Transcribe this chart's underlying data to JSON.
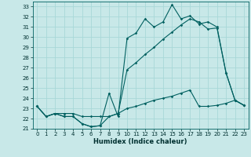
{
  "title": "",
  "xlabel": "Humidex (Indice chaleur)",
  "ylabel": "",
  "bg_color": "#c8e8e8",
  "grid_color": "#a8d8d8",
  "line_color": "#006060",
  "ylim": [
    21,
    33.5
  ],
  "xlim": [
    -0.5,
    23.5
  ],
  "yticks": [
    21,
    22,
    23,
    24,
    25,
    26,
    27,
    28,
    29,
    30,
    31,
    32,
    33
  ],
  "xticks": [
    0,
    1,
    2,
    3,
    4,
    5,
    6,
    7,
    8,
    9,
    10,
    11,
    12,
    13,
    14,
    15,
    16,
    17,
    18,
    19,
    20,
    21,
    22,
    23
  ],
  "line1_x": [
    0,
    1,
    2,
    3,
    4,
    5,
    6,
    7,
    8,
    9,
    10,
    11,
    12,
    13,
    14,
    15,
    16,
    17,
    18,
    19,
    20,
    21,
    22,
    23
  ],
  "line1_y": [
    23.2,
    22.2,
    22.5,
    22.2,
    22.2,
    21.5,
    21.2,
    21.3,
    24.5,
    22.2,
    29.9,
    30.4,
    31.8,
    31.0,
    31.5,
    33.2,
    31.8,
    32.1,
    31.3,
    31.5,
    31.0,
    26.5,
    23.8,
    23.3
  ],
  "line2_x": [
    0,
    1,
    2,
    3,
    4,
    5,
    6,
    7,
    8,
    9,
    10,
    11,
    12,
    13,
    14,
    15,
    16,
    17,
    18,
    19,
    20,
    21,
    22,
    23
  ],
  "line2_y": [
    23.2,
    22.2,
    22.5,
    22.2,
    22.2,
    21.5,
    21.2,
    21.3,
    22.2,
    22.5,
    26.8,
    27.5,
    28.3,
    29.0,
    29.8,
    30.5,
    31.2,
    31.8,
    31.5,
    30.8,
    30.9,
    26.5,
    23.8,
    23.3
  ],
  "line3_x": [
    0,
    1,
    2,
    3,
    4,
    5,
    6,
    7,
    8,
    9,
    10,
    11,
    12,
    13,
    14,
    15,
    16,
    17,
    18,
    19,
    20,
    21,
    22,
    23
  ],
  "line3_y": [
    23.2,
    22.2,
    22.5,
    22.5,
    22.5,
    22.2,
    22.2,
    22.2,
    22.2,
    22.5,
    23.0,
    23.2,
    23.5,
    23.8,
    24.0,
    24.2,
    24.5,
    24.8,
    23.2,
    23.2,
    23.3,
    23.5,
    23.8,
    23.3
  ]
}
